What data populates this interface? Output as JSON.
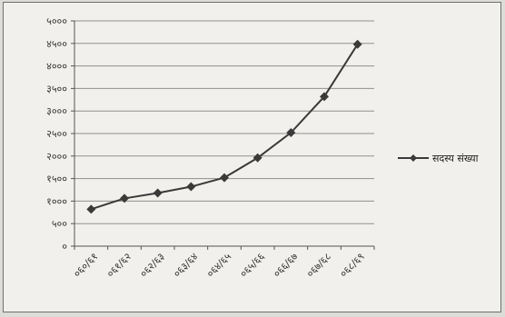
{
  "chart_data": {
    "type": "line",
    "title": "",
    "xlabel": "",
    "ylabel": "",
    "categories": [
      "०६०/६१",
      "०६१/६२",
      "०६२/६३",
      "०६३/६४",
      "०६४/६५",
      "०६५/६६",
      "०६६/६७",
      "०६७/६८",
      "०६८/६९"
    ],
    "series": [
      {
        "name": "सदस्य संख्या",
        "values": [
          820,
          1060,
          1180,
          1320,
          1520,
          1960,
          2520,
          3320,
          4480
        ],
        "color": "#3a3a3a",
        "marker": "diamond"
      }
    ],
    "ylim": [
      0,
      5000
    ],
    "yticks": [
      0,
      500,
      1000,
      1500,
      2000,
      2500,
      3000,
      3500,
      4000,
      4500,
      5000
    ],
    "ytick_labels": [
      "०",
      "५००",
      "१०००",
      "१५००",
      "२०००",
      "२५००",
      "३०००",
      "३५००",
      "४०००",
      "४५००",
      "५०००"
    ],
    "grid": true,
    "legend": "right"
  }
}
